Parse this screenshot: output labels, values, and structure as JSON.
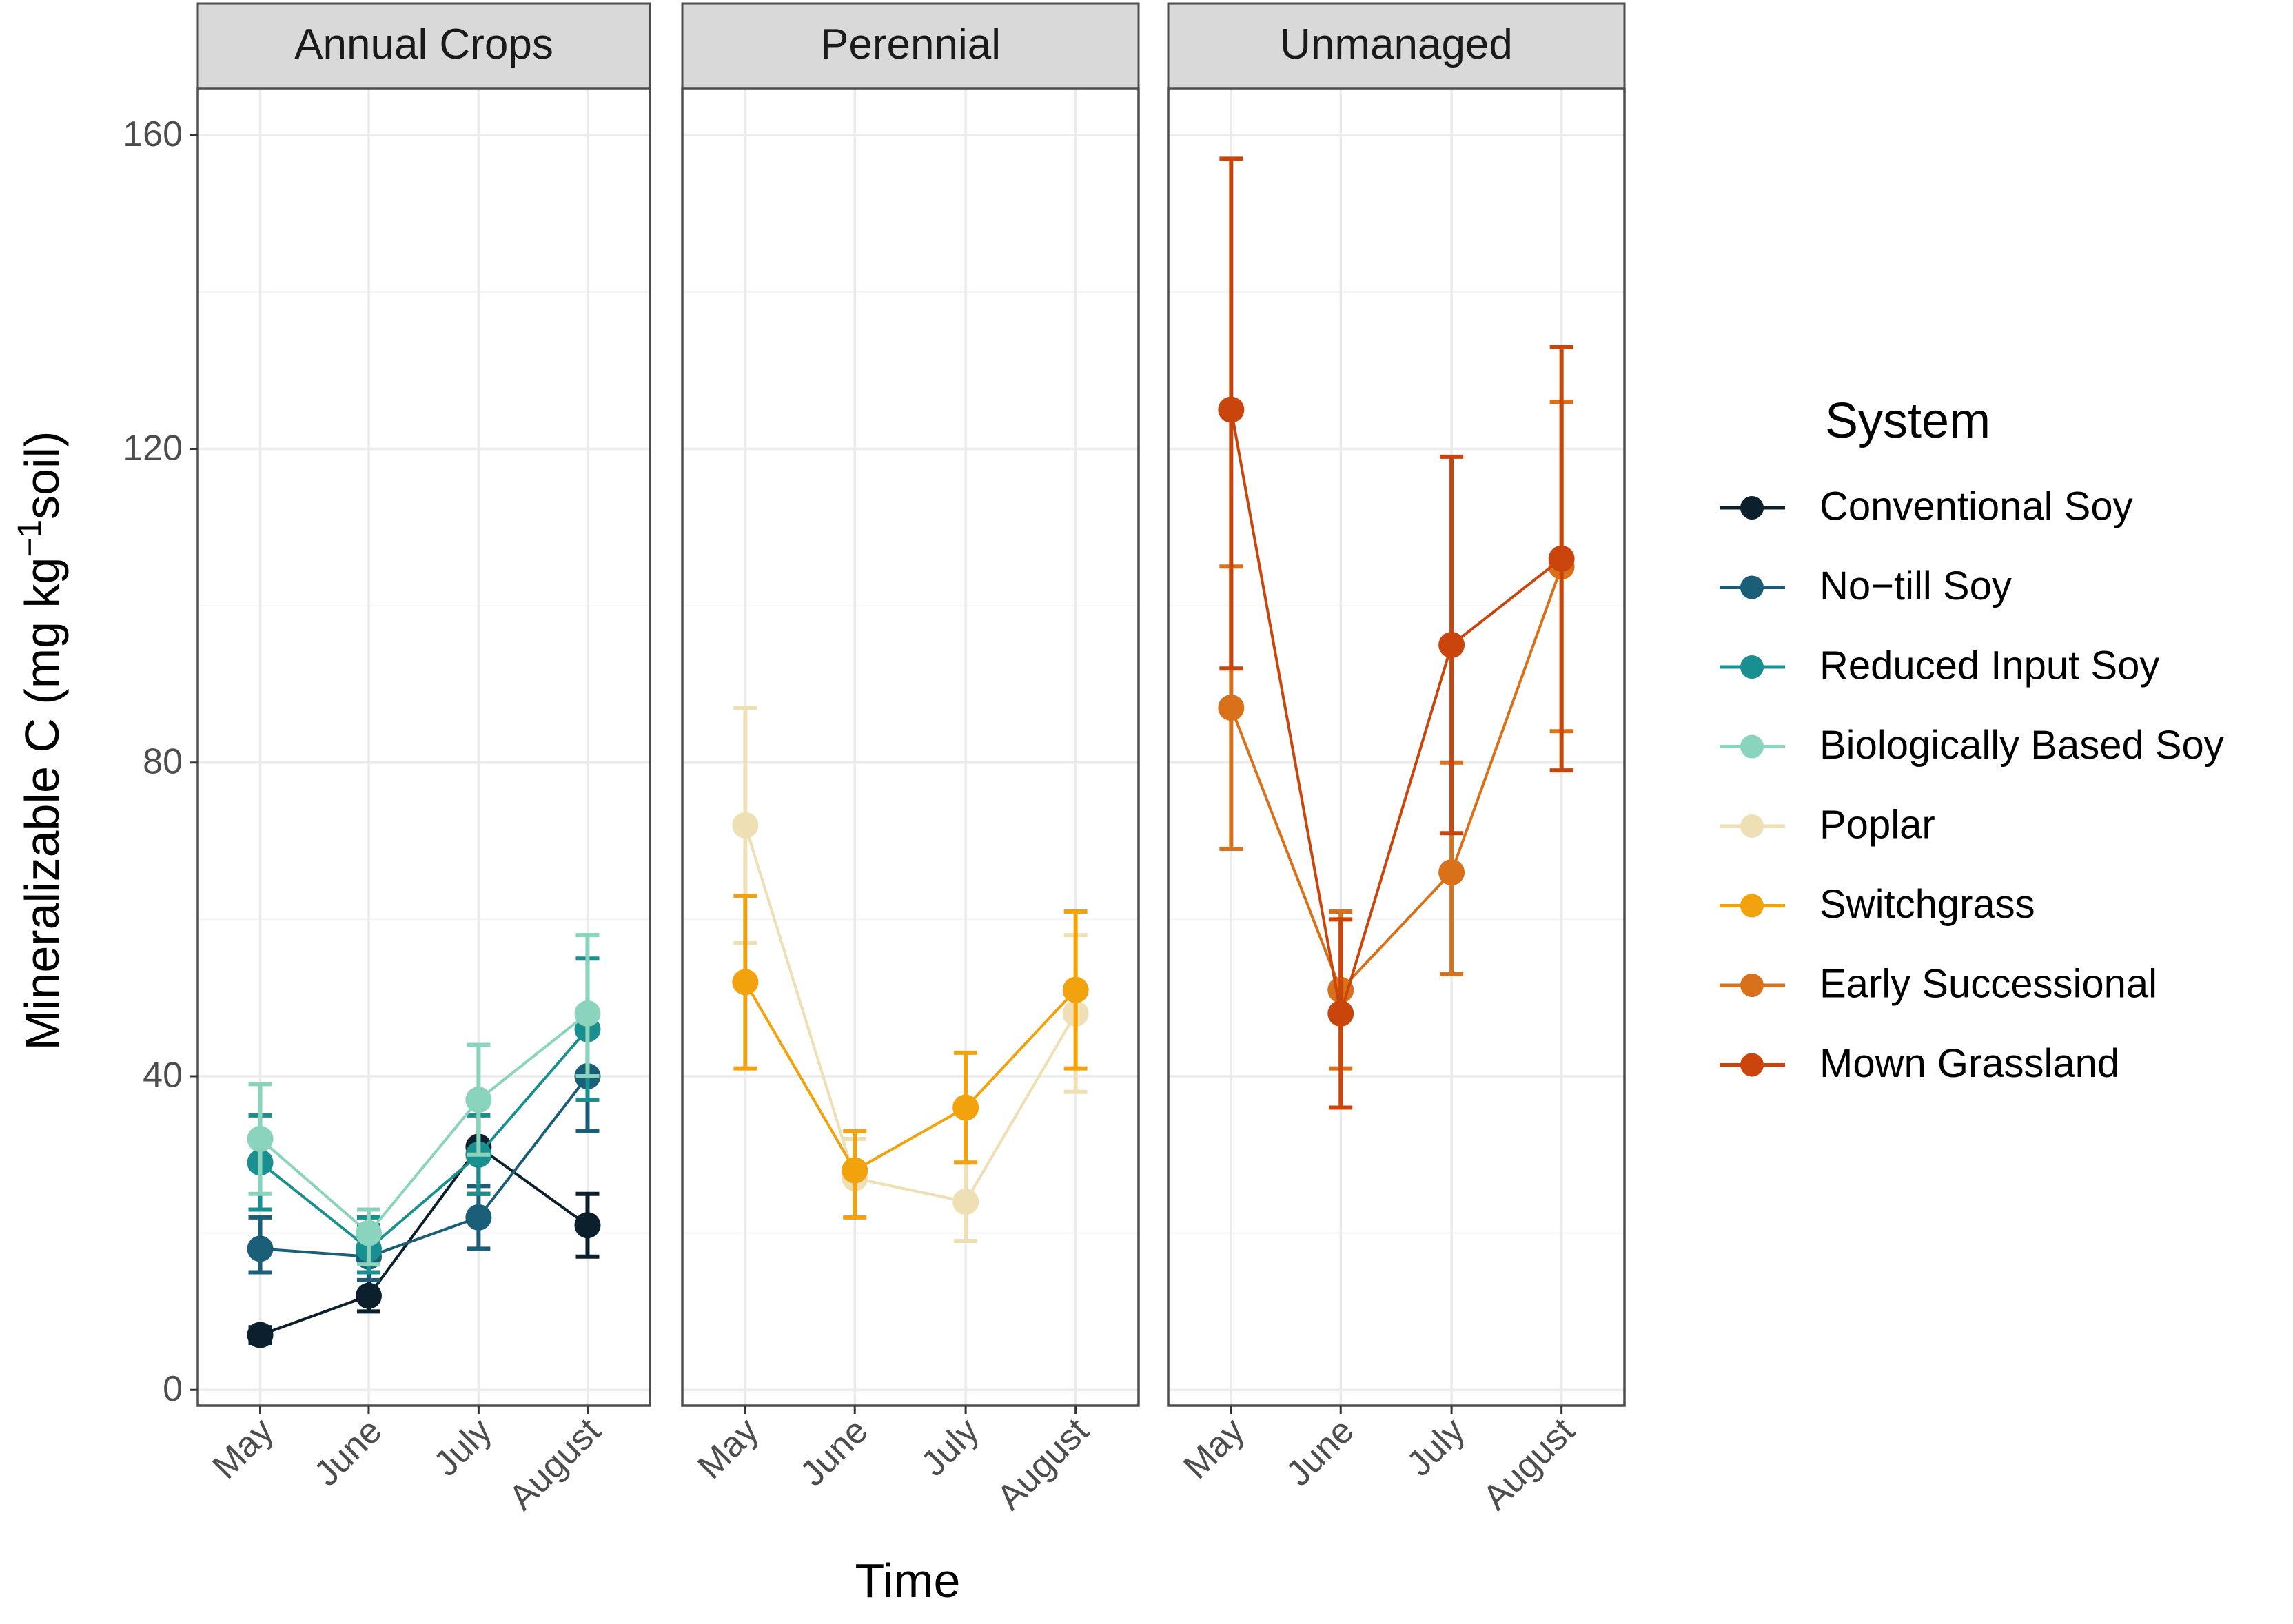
{
  "chart_data": {
    "type": "line",
    "xlabel": "Time",
    "ylabel": "Mineralizable C (mg kg",
    "ylabel_sup": "−1",
    "ylabel_tail": "soil)",
    "ylim": [
      -2,
      166
    ],
    "y_ticks": [
      "0",
      "40",
      "80",
      "120",
      "160"
    ],
    "categories": [
      "May",
      "June",
      "July",
      "August"
    ],
    "panels": [
      {
        "title": "Annual Crops",
        "series": [
          {
            "name": "Conventional Soy",
            "color": "#0b1f2c",
            "values": [
              7,
              12,
              31,
              21
            ],
            "lower": [
              6,
              10,
              25,
              17
            ],
            "upper": [
              8,
              15,
              37,
              25
            ]
          },
          {
            "name": "No−till Soy",
            "color": "#1b5e77",
            "values": [
              18,
              17,
              22,
              40
            ],
            "lower": [
              15,
              14,
              18,
              33
            ],
            "upper": [
              22,
              21,
              26,
              48
            ]
          },
          {
            "name": "Reduced Input Soy",
            "color": "#1a8f8f",
            "values": [
              29,
              18,
              30,
              46
            ],
            "lower": [
              23,
              15,
              25,
              37
            ],
            "upper": [
              35,
              22,
              35,
              55
            ]
          },
          {
            "name": "Biologically Based Soy",
            "color": "#8ad3bd",
            "values": [
              32,
              20,
              37,
              48
            ],
            "lower": [
              25,
              16,
              30,
              40
            ],
            "upper": [
              39,
              23,
              44,
              58
            ]
          }
        ]
      },
      {
        "title": "Perennial",
        "series": [
          {
            "name": "Poplar",
            "color": "#eedfb4",
            "values": [
              72,
              27,
              24,
              48
            ],
            "lower": [
              57,
              22,
              19,
              38
            ],
            "upper": [
              87,
              32,
              29,
              58
            ]
          },
          {
            "name": "Switchgrass",
            "color": "#f2a20c",
            "values": [
              52,
              28,
              36,
              51
            ],
            "lower": [
              41,
              22,
              29,
              41
            ],
            "upper": [
              63,
              33,
              43,
              61
            ]
          }
        ]
      },
      {
        "title": "Unmanaged",
        "series": [
          {
            "name": "Early Successional",
            "color": "#d9711a",
            "values": [
              87,
              51,
              66,
              105
            ],
            "lower": [
              69,
              41,
              53,
              84
            ],
            "upper": [
              105,
              61,
              80,
              126
            ]
          },
          {
            "name": "Mown Grassland",
            "color": "#c9450c",
            "values": [
              125,
              48,
              95,
              106
            ],
            "lower": [
              92,
              36,
              71,
              79
            ],
            "upper": [
              157,
              60,
              119,
              133
            ]
          }
        ]
      }
    ],
    "legend": {
      "title": "System",
      "position": "right",
      "items": [
        {
          "label": "Conventional Soy",
          "color": "#0b1f2c"
        },
        {
          "label": "No−till Soy",
          "color": "#1b5e77"
        },
        {
          "label": "Reduced Input Soy",
          "color": "#1a8f8f"
        },
        {
          "label": "Biologically Based Soy",
          "color": "#8ad3bd"
        },
        {
          "label": "Poplar",
          "color": "#eedfb4"
        },
        {
          "label": "Switchgrass",
          "color": "#f2a20c"
        },
        {
          "label": "Early Successional",
          "color": "#d9711a"
        },
        {
          "label": "Mown Grassland",
          "color": "#c9450c"
        }
      ]
    }
  }
}
